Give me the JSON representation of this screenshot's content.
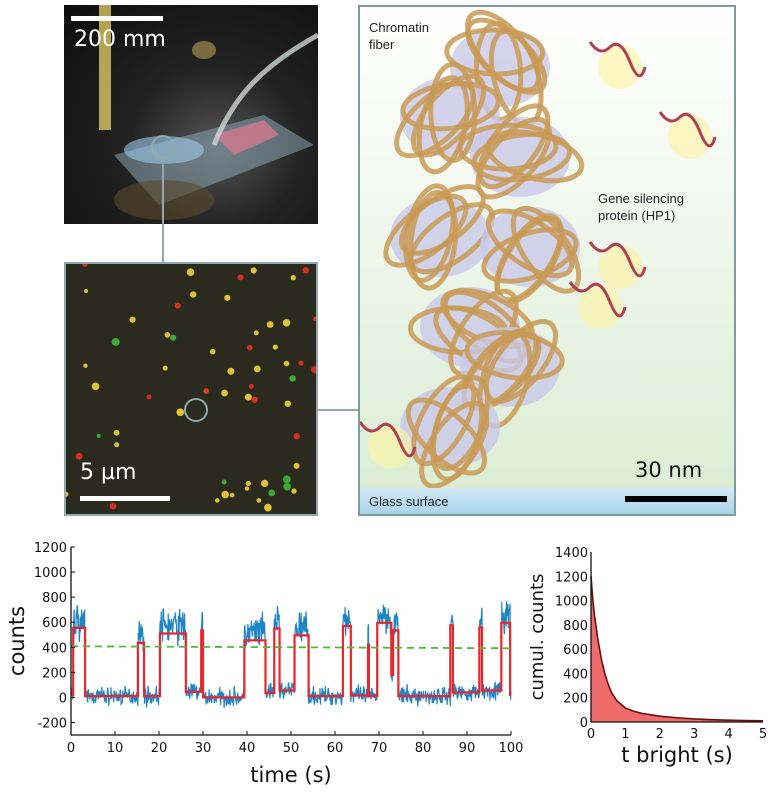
{
  "photo": {
    "scale_label": "200 mm"
  },
  "micrograph": {
    "scale_label": "5 µm"
  },
  "illustration": {
    "chromatin_label_1": "Chromatin",
    "chromatin_label_2": "fiber",
    "protein_label_1": "Gene silencing",
    "protein_label_2": "protein (HP1)",
    "scale_label": "30 nm",
    "surface_label": "Glass surface"
  },
  "chart_data": [
    {
      "type": "line",
      "title": "",
      "xlabel": "time (s)",
      "ylabel": "counts",
      "xlim": [
        0,
        100
      ],
      "ylim": [
        -300,
        1200
      ],
      "xticks": [
        "0",
        "10",
        "20",
        "30",
        "40",
        "50",
        "60",
        "70",
        "80",
        "90",
        "100"
      ],
      "yticks": [
        "-200",
        "0",
        "200",
        "400",
        "600",
        "800",
        "1000",
        "1200"
      ],
      "threshold": {
        "value": 400,
        "color": "#4cbb3c",
        "style": "dashed"
      },
      "raw_color": "#1f84c6",
      "fit_color": "#e8262b",
      "fit_steps": [
        [
          0,
          0.5,
          20
        ],
        [
          0.5,
          3.2,
          555
        ],
        [
          3.2,
          15.2,
          10
        ],
        [
          15.2,
          16.6,
          435
        ],
        [
          16.6,
          20.2,
          10
        ],
        [
          20.2,
          26.1,
          510
        ],
        [
          26.1,
          29.6,
          45
        ],
        [
          29.6,
          30,
          535
        ],
        [
          30,
          39.4,
          0
        ],
        [
          39.4,
          44.2,
          455
        ],
        [
          44.2,
          46.2,
          35
        ],
        [
          46.2,
          47.4,
          550
        ],
        [
          47.4,
          50.8,
          55
        ],
        [
          50.8,
          54,
          495
        ],
        [
          54,
          61.8,
          10
        ],
        [
          61.8,
          63.6,
          570
        ],
        [
          63.6,
          67.5,
          15
        ],
        [
          67.5,
          67.7,
          420
        ],
        [
          67.7,
          69.6,
          10
        ],
        [
          69.6,
          72.8,
          595
        ],
        [
          72.8,
          73.2,
          180
        ],
        [
          73.2,
          74.4,
          535
        ],
        [
          74.4,
          86.2,
          10
        ],
        [
          86.2,
          86.8,
          575
        ],
        [
          86.8,
          92.8,
          40
        ],
        [
          92.8,
          93.4,
          560
        ],
        [
          93.4,
          97.8,
          55
        ],
        [
          97.8,
          99.8,
          595
        ],
        [
          99.8,
          100,
          20
        ]
      ]
    },
    {
      "type": "area",
      "title": "",
      "xlabel": "t bright (s)",
      "ylabel": "cumul. counts",
      "xlim": [
        0,
        5
      ],
      "ylim": [
        0,
        1400
      ],
      "xticks": [
        "0",
        "1",
        "2",
        "3",
        "4",
        "5"
      ],
      "yticks": [
        "0",
        "200",
        "400",
        "600",
        "800",
        "1000",
        "1200",
        "1400"
      ],
      "fill_color": "#ee6b6b",
      "line_color": "#6b0f0f",
      "x": [
        0,
        0.05,
        0.1,
        0.2,
        0.3,
        0.4,
        0.5,
        0.6,
        0.75,
        1,
        1.25,
        1.5,
        2,
        2.5,
        3,
        3.5,
        4,
        4.5,
        5
      ],
      "y": [
        1200,
        1020,
        880,
        680,
        520,
        400,
        310,
        240,
        175,
        115,
        88,
        70,
        48,
        35,
        25,
        19,
        15,
        12,
        10
      ]
    }
  ]
}
